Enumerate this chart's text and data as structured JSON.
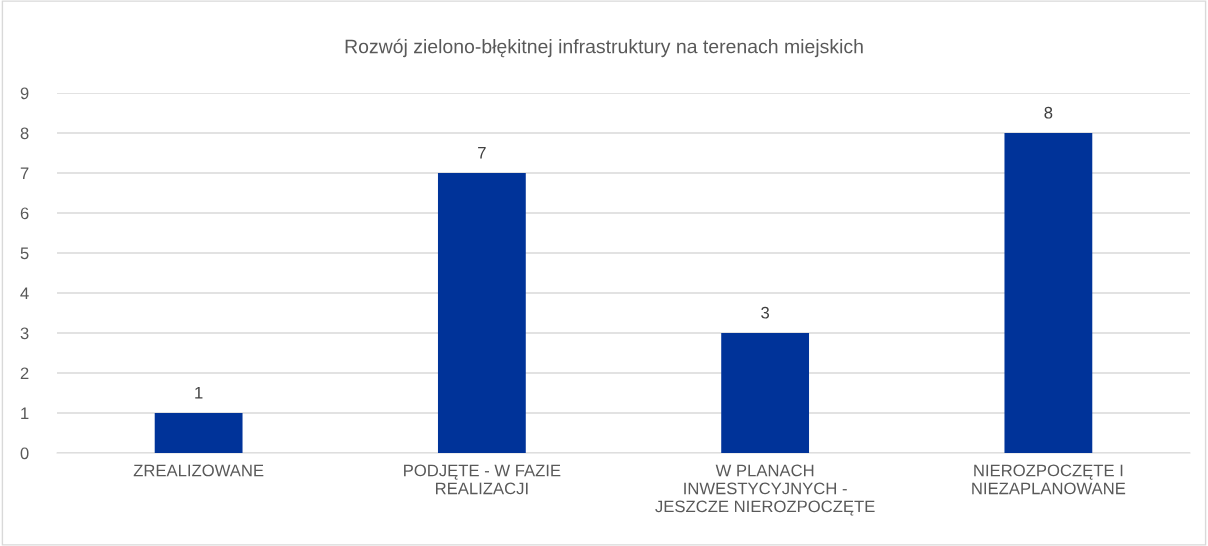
{
  "chart_data": {
    "type": "bar",
    "title": "Rozwój zielono-błękitnej infrastruktury na terenach miejskich",
    "categories": [
      "ZREALIZOWANE",
      "PODJĘTE - W FAZIE\nREALIZACJI",
      "W PLANACH\nINWESTYCYJNYCH -\nJESZCZE NIEROZPOCZĘTE",
      "NIEROZPOCZĘTE I\nNIEZAPLANOWANE"
    ],
    "values": [
      1,
      7,
      3,
      8
    ],
    "color": "#003399",
    "ylim": [
      0,
      9
    ],
    "yticks": [
      0,
      1,
      2,
      3,
      4,
      5,
      6,
      7,
      8,
      9
    ],
    "grid": "y",
    "data_labels": true
  }
}
